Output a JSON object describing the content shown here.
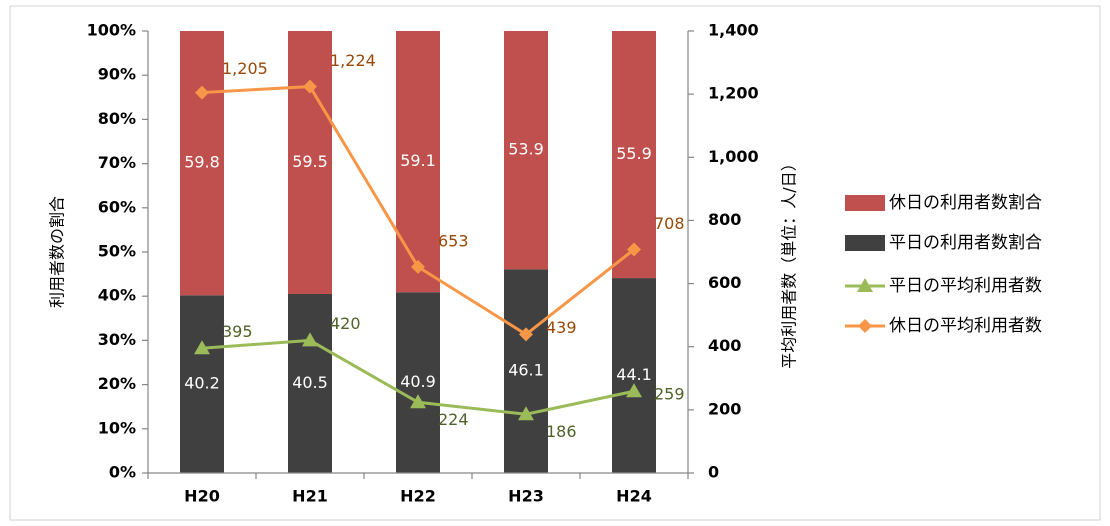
{
  "chart_data": {
    "type": "bar",
    "categories": [
      "H20",
      "H21",
      "H22",
      "H23",
      "H24"
    ],
    "ylabel": "利用者数の割合",
    "y2label": "平均利用者数（単位：人/日）",
    "ylim": [
      0,
      100
    ],
    "yticks": [
      {
        "value": 0,
        "label": "0%"
      },
      {
        "value": 10,
        "label": "10%"
      },
      {
        "value": 20,
        "label": "20%"
      },
      {
        "value": 30,
        "label": "30%"
      },
      {
        "value": 40,
        "label": "40%"
      },
      {
        "value": 50,
        "label": "50%"
      },
      {
        "value": 60,
        "label": "60%"
      },
      {
        "value": 70,
        "label": "70%"
      },
      {
        "value": 80,
        "label": "80%"
      },
      {
        "value": 90,
        "label": "90%"
      },
      {
        "value": 100,
        "label": "100%"
      }
    ],
    "y2lim": [
      0,
      1400
    ],
    "y2ticks": [
      0,
      200,
      400,
      600,
      800,
      {
        "value": 1000,
        "label": "1,000"
      },
      {
        "value": 1200,
        "label": "1,200"
      },
      {
        "value": 1400,
        "label": "1,400"
      }
    ],
    "legend": "right",
    "series": [
      {
        "name": "休日の利用者数割合",
        "type": "bar",
        "color": "#c0504d",
        "values": [
          59.8,
          59.5,
          59.1,
          53.9,
          55.9
        ]
      },
      {
        "name": "平日の利用者数割合",
        "type": "bar",
        "color": "#404040",
        "values": [
          40.2,
          40.5,
          40.9,
          46.1,
          44.1
        ]
      },
      {
        "name": "平日の平均利用者数",
        "type": "line",
        "axis": "y2",
        "marker": "triangle",
        "color": "#9bbb59",
        "values": [
          395,
          420,
          224,
          186,
          259
        ]
      },
      {
        "name": "休日の平均利用者数",
        "type": "line",
        "axis": "y2",
        "marker": "diamond",
        "color": "#f79646",
        "values": [
          1205,
          1224,
          653,
          439,
          708
        ],
        "value_labels": [
          "1,205",
          "1,224",
          "653",
          "439",
          "708"
        ]
      }
    ]
  }
}
